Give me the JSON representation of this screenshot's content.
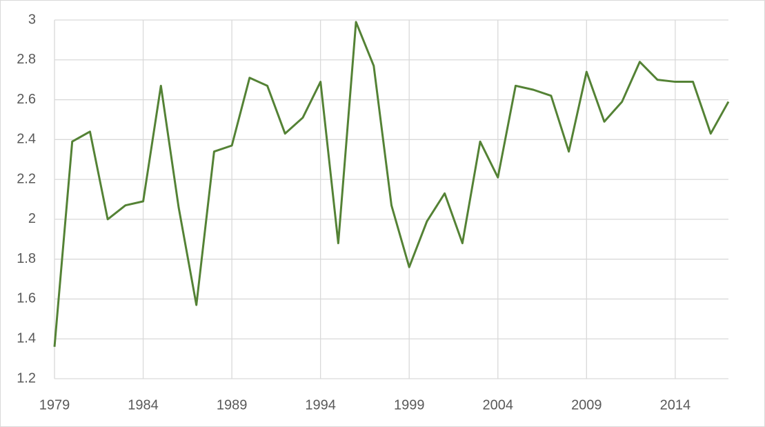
{
  "chart_data": {
    "type": "line",
    "x": [
      1979,
      1980,
      1981,
      1982,
      1983,
      1984,
      1985,
      1986,
      1987,
      1988,
      1989,
      1990,
      1991,
      1992,
      1993,
      1994,
      1995,
      1996,
      1997,
      1998,
      1999,
      2000,
      2001,
      2002,
      2003,
      2004,
      2005,
      2006,
      2007,
      2008,
      2009,
      2010,
      2011,
      2012,
      2013,
      2014,
      2015,
      2016,
      2017
    ],
    "series": [
      {
        "color": "#548235",
        "values": [
          1.36,
          2.39,
          2.44,
          2.0,
          2.07,
          2.09,
          2.67,
          2.06,
          1.57,
          2.34,
          2.37,
          2.71,
          2.67,
          2.43,
          2.51,
          2.69,
          1.88,
          2.99,
          2.77,
          2.07,
          1.76,
          1.99,
          2.13,
          1.88,
          2.39,
          2.21,
          2.67,
          2.65,
          2.62,
          2.34,
          2.74,
          2.49,
          2.59,
          2.79,
          2.7,
          2.69,
          2.69,
          2.43,
          2.59
        ]
      }
    ],
    "xlim": [
      1979,
      2017
    ],
    "xticks": [
      1979,
      1984,
      1989,
      1994,
      1999,
      2004,
      2009,
      2014
    ],
    "ylim": [
      1.2,
      3
    ],
    "yticks": [
      1.2,
      1.4,
      1.6,
      1.8,
      2,
      2.2,
      2.4,
      2.6,
      2.8,
      3
    ],
    "grid": true
  }
}
